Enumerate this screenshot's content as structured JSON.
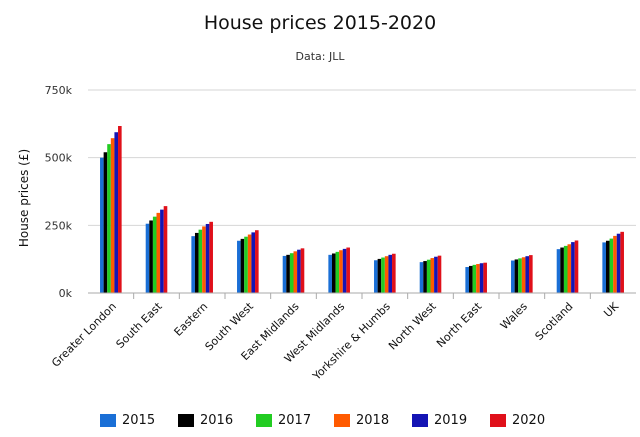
{
  "chart_data": {
    "type": "bar",
    "title": "House prices 2015-2020",
    "subtitle": "Data: JLL",
    "xlabel": "",
    "ylabel": "House prices (£)",
    "ylim": [
      0,
      750000
    ],
    "yticks": [
      {
        "value": 0,
        "label": "0k"
      },
      {
        "value": 250000,
        "label": "250k"
      },
      {
        "value": 500000,
        "label": "500k"
      },
      {
        "value": 750000,
        "label": "750k"
      }
    ],
    "grid": true,
    "legend_position": "bottom",
    "categories": [
      "Greater London",
      "South East",
      "Eastern",
      "South West",
      "East Midlands",
      "West Midlands",
      "Yorkshire & Humbs",
      "North West",
      "North East",
      "Wales",
      "Scotland",
      "UK"
    ],
    "series": [
      {
        "name": "2015",
        "color": "#1a6fd6",
        "values": [
          500000,
          256000,
          210000,
          193000,
          137000,
          141000,
          121000,
          114000,
          96000,
          120000,
          162000,
          187000
        ]
      },
      {
        "name": "2016",
        "color": "#000000",
        "values": [
          520000,
          268000,
          222000,
          200000,
          141000,
          146000,
          126000,
          118000,
          100000,
          124000,
          168000,
          193000
        ]
      },
      {
        "name": "2017",
        "color": "#22cc22",
        "values": [
          550000,
          282000,
          234000,
          208000,
          147000,
          152000,
          131000,
          123000,
          104000,
          128000,
          174000,
          201000
        ]
      },
      {
        "name": "2018",
        "color": "#ff5a00",
        "values": [
          572000,
          296000,
          246000,
          216000,
          154000,
          158000,
          136000,
          129000,
          107000,
          132000,
          180000,
          211000
        ]
      },
      {
        "name": "2019",
        "color": "#1414b4",
        "values": [
          594000,
          308000,
          255000,
          224000,
          160000,
          163000,
          141000,
          134000,
          110000,
          136000,
          188000,
          219000
        ]
      },
      {
        "name": "2020",
        "color": "#e0101a",
        "values": [
          617000,
          321000,
          263000,
          232000,
          165000,
          168000,
          145000,
          138000,
          112000,
          140000,
          194000,
          226000
        ]
      }
    ]
  }
}
